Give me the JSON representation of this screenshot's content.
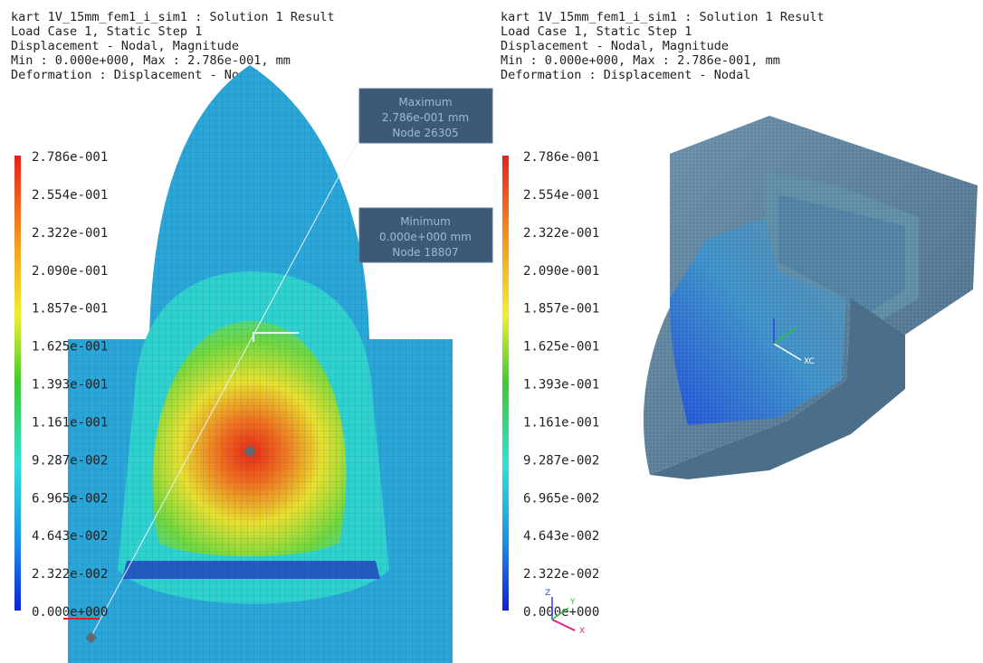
{
  "panels": [
    {
      "header": [
        "kart 1V_15mm_fem1_i_sim1 : Solution 1 Result",
        "Load Case 1, Static Step 1",
        "Displacement - Nodal, Magnitude",
        "Min : 0.000e+000, Max : 2.786e-001, mm",
        "Deformation : Displacement - Nodal"
      ],
      "legend": [
        "2.786e-001",
        "2.554e-001",
        "2.322e-001",
        "2.090e-001",
        "1.857e-001",
        "1.625e-001",
        "1.393e-001",
        "1.161e-001",
        "9.287e-002",
        "6.965e-002",
        "4.643e-002",
        "2.322e-002",
        "0.000e+000"
      ],
      "annotations": [
        {
          "lines": [
            "Maximum",
            "2.786e-001 mm",
            "Node 26305"
          ]
        },
        {
          "lines": [
            "Minimum",
            "0.000e+000 mm",
            "Node 18807"
          ]
        }
      ]
    },
    {
      "header": [
        "kart 1V_15mm_fem1_i_sim1 : Solution 1 Result",
        "Load Case 1, Static Step 1",
        "Displacement - Nodal, Magnitude",
        "Min : 0.000e+000, Max : 2.786e-001, mm",
        "Deformation : Displacement - Nodal"
      ],
      "legend": [
        "2.786e-001",
        "2.554e-001",
        "2.322e-001",
        "2.090e-001",
        "1.857e-001",
        "1.625e-001",
        "1.393e-001",
        "1.161e-001",
        "9.287e-002",
        "6.965e-002",
        "4.643e-002",
        "2.322e-002",
        "0.000e+000"
      ],
      "csys_label": "XC",
      "triad": [
        "Z",
        "Y",
        "X"
      ]
    }
  ]
}
